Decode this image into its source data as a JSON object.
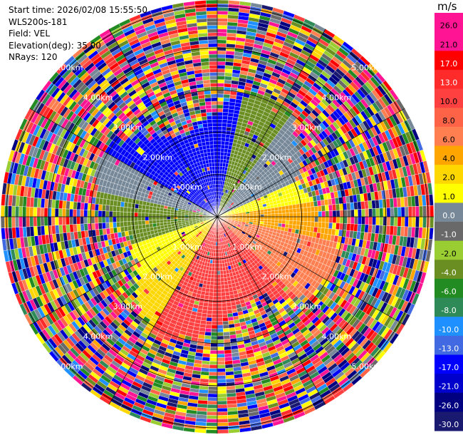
{
  "header": {
    "start_time": "Start time: 2026/02/08 15:55:50",
    "instrument": "WLS200s-181",
    "field": "Field: VEL",
    "elevation": "Elevation(deg): 35.00",
    "nrays": "NRays: 120"
  },
  "chart_data": {
    "type": "heatmap",
    "projection": "polar-ppi",
    "field": "VEL",
    "n_rays": 120,
    "range_rings_km": [
      1,
      2,
      3,
      4,
      5
    ],
    "range_ring_labels": [
      "1.00km",
      "2.00km",
      "3.00km",
      "4.00km",
      "5.00km"
    ],
    "colorbar": {
      "unit": "m/s",
      "tick_labels": [
        "26.0",
        "21.0",
        "17.0",
        "13.0",
        "10.0",
        "8.0",
        "6.0",
        "4.0",
        "2.0",
        "1.0",
        "0.0",
        "-1.0",
        "-2.0",
        "-4.0",
        "-6.0",
        "-8.0",
        "-10.0",
        "-13.0",
        "-17.0",
        "-21.0",
        "-26.0",
        "-30.0"
      ],
      "bins_top_to_bottom": [
        {
          "color": "#ff1493",
          "label": "26.0"
        },
        {
          "color": "#ff1493",
          "label": "21.0"
        },
        {
          "color": "#ff0000",
          "label": "17.0"
        },
        {
          "color": "#ff2a2a",
          "label": "13.0"
        },
        {
          "color": "#ff4040",
          "label": "10.0"
        },
        {
          "color": "#ff6347",
          "label": "8.0"
        },
        {
          "color": "#ff7f50",
          "label": "6.0"
        },
        {
          "color": "#ffa500",
          "label": "4.0"
        },
        {
          "color": "#ffd700",
          "label": "2.0"
        },
        {
          "color": "#ffff00",
          "label": "1.0"
        },
        {
          "color": "#778899",
          "label": "0.0"
        },
        {
          "color": "#696969",
          "label": "-1.0"
        },
        {
          "color": "#9acd32",
          "label": "-2.0"
        },
        {
          "color": "#6b8e23",
          "label": "-4.0"
        },
        {
          "color": "#228b22",
          "label": "-6.0"
        },
        {
          "color": "#2e8b57",
          "label": "-8.0"
        },
        {
          "color": "#1e90ff",
          "label": "-10.0"
        },
        {
          "color": "#4169e1",
          "label": "-13.0"
        },
        {
          "color": "#0000ff",
          "label": "-17.0"
        },
        {
          "color": "#0000cd",
          "label": "-21.0"
        },
        {
          "color": "#000080",
          "label": "-26.0"
        },
        {
          "color": "#191970",
          "label": "-30.0"
        }
      ]
    },
    "inner_pattern_description_colors": [
      "#0000ff",
      "#ff2a2a",
      "#ffd700",
      "#228b22",
      "#778899"
    ]
  }
}
